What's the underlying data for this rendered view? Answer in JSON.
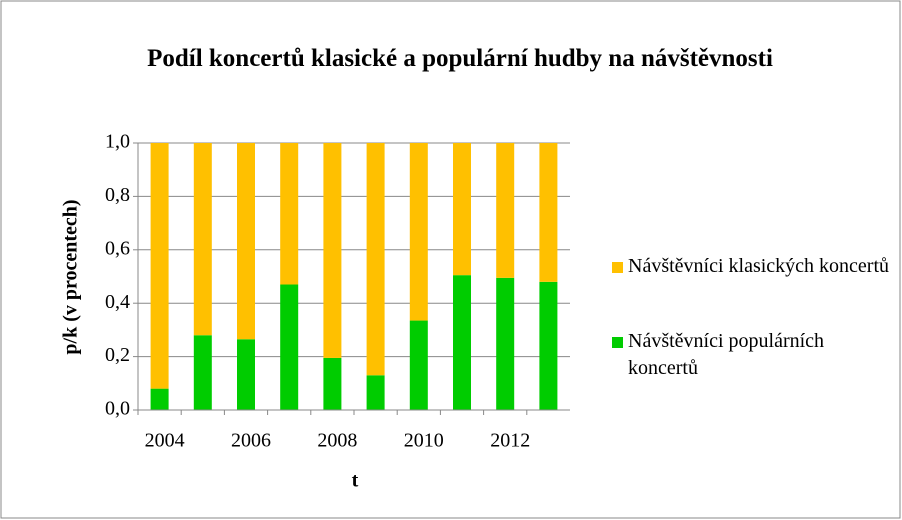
{
  "chart_data": {
    "type": "stacked_bar",
    "title": "Podíl koncertů klasické a populární hudby na návštěvnosti",
    "x_label": "t",
    "y_label": "p/k (v procentech)",
    "categories": [
      "2004",
      null,
      "2006",
      null,
      "2008",
      null,
      "2010",
      null,
      "2012",
      null
    ],
    "series": [
      {
        "name": "Návštěvníci populárních koncertů",
        "color": "#00cc00",
        "values": [
          0.08,
          0.28,
          0.265,
          0.47,
          0.195,
          0.13,
          0.335,
          0.505,
          0.495,
          0.48
        ]
      },
      {
        "name": "Návštěvníci klasických koncertů",
        "color": "#ffc000",
        "values": [
          0.92,
          0.72,
          0.735,
          0.53,
          0.805,
          0.87,
          0.665,
          0.495,
          0.505,
          0.52
        ]
      }
    ],
    "ylim": [
      0,
      1
    ],
    "yticks": [
      {
        "value": 0,
        "label": "0,0"
      },
      {
        "value": 0.2,
        "label": "0,2"
      },
      {
        "value": 0.4,
        "label": "0,4"
      },
      {
        "value": 0.6,
        "label": "0,6"
      },
      {
        "value": 0.8,
        "label": "0,8"
      },
      {
        "value": 1,
        "label": "1,0"
      }
    ],
    "grid": true,
    "legend": "right"
  }
}
